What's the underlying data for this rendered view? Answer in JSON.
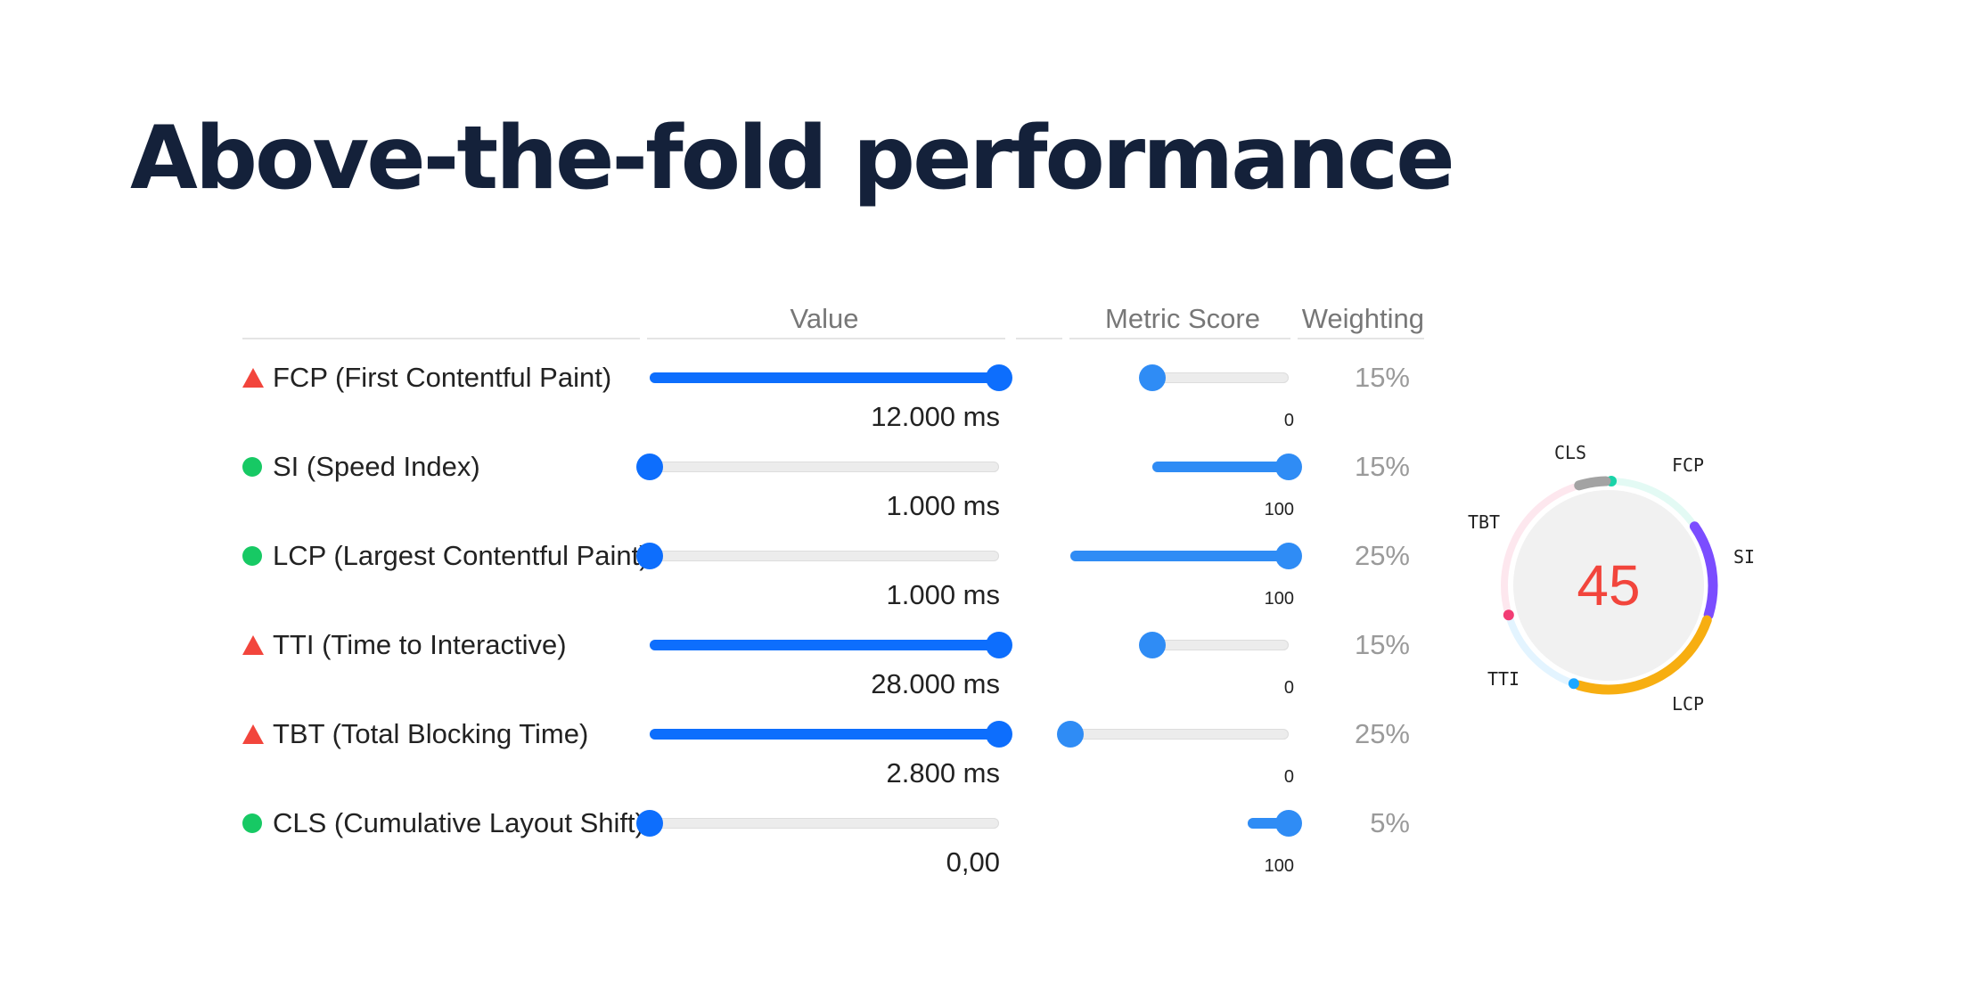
{
  "title": "Above-the-fold performance",
  "columns": {
    "value": "Value",
    "score": "Metric Score",
    "weighting": "Weighting"
  },
  "colors": {
    "fail": "#f2453c",
    "pass": "#17c964",
    "slider": "#0d6efd",
    "score_slider": "#2f8cf5",
    "score_text": "#f2453c"
  },
  "metrics": [
    {
      "status": "fail",
      "label": "FCP (First Contentful Paint)",
      "value_text": "12.000 ms",
      "value_level": 1.0,
      "score_text": "0",
      "score_level": 0.0,
      "weighting": "15%"
    },
    {
      "status": "pass",
      "label": "SI (Speed Index)",
      "value_text": "1.000 ms",
      "value_level": 0.0,
      "score_text": "100",
      "score_level": 1.0,
      "weighting": "15%"
    },
    {
      "status": "pass",
      "label": "LCP (Largest Contentful Paint)",
      "value_text": "1.000 ms",
      "value_level": 0.0,
      "score_text": "100",
      "score_level": 1.0,
      "weighting": "25%"
    },
    {
      "status": "fail",
      "label": "TTI (Time to Interactive)",
      "value_text": "28.000 ms",
      "value_level": 1.0,
      "score_text": "0",
      "score_level": 0.0,
      "weighting": "15%"
    },
    {
      "status": "fail",
      "label": "TBT (Total Blocking Time)",
      "value_text": "2.800 ms",
      "value_level": 1.0,
      "score_text": "0",
      "score_level": 0.0,
      "weighting": "25%"
    },
    {
      "status": "pass",
      "label": "CLS (Cumulative Layout Shift)",
      "value_text": "0,00",
      "value_level": 0.0,
      "score_text": "100",
      "score_level": 1.0,
      "weighting": "5%"
    }
  ],
  "gauge": {
    "score": "45",
    "segments": [
      {
        "name": "FCP",
        "weight": 15,
        "score": 0,
        "color": "#19d3a8"
      },
      {
        "name": "SI",
        "weight": 15,
        "score": 100,
        "color": "#7b4dff"
      },
      {
        "name": "LCP",
        "weight": 25,
        "score": 100,
        "color": "#f7ae11"
      },
      {
        "name": "TTI",
        "weight": 15,
        "score": 0,
        "color": "#1ba7ff"
      },
      {
        "name": "TBT",
        "weight": 25,
        "score": 0,
        "color": "#f23d74"
      },
      {
        "name": "CLS",
        "weight": 5,
        "score": 100,
        "color": "#a3a3a3"
      }
    ]
  }
}
